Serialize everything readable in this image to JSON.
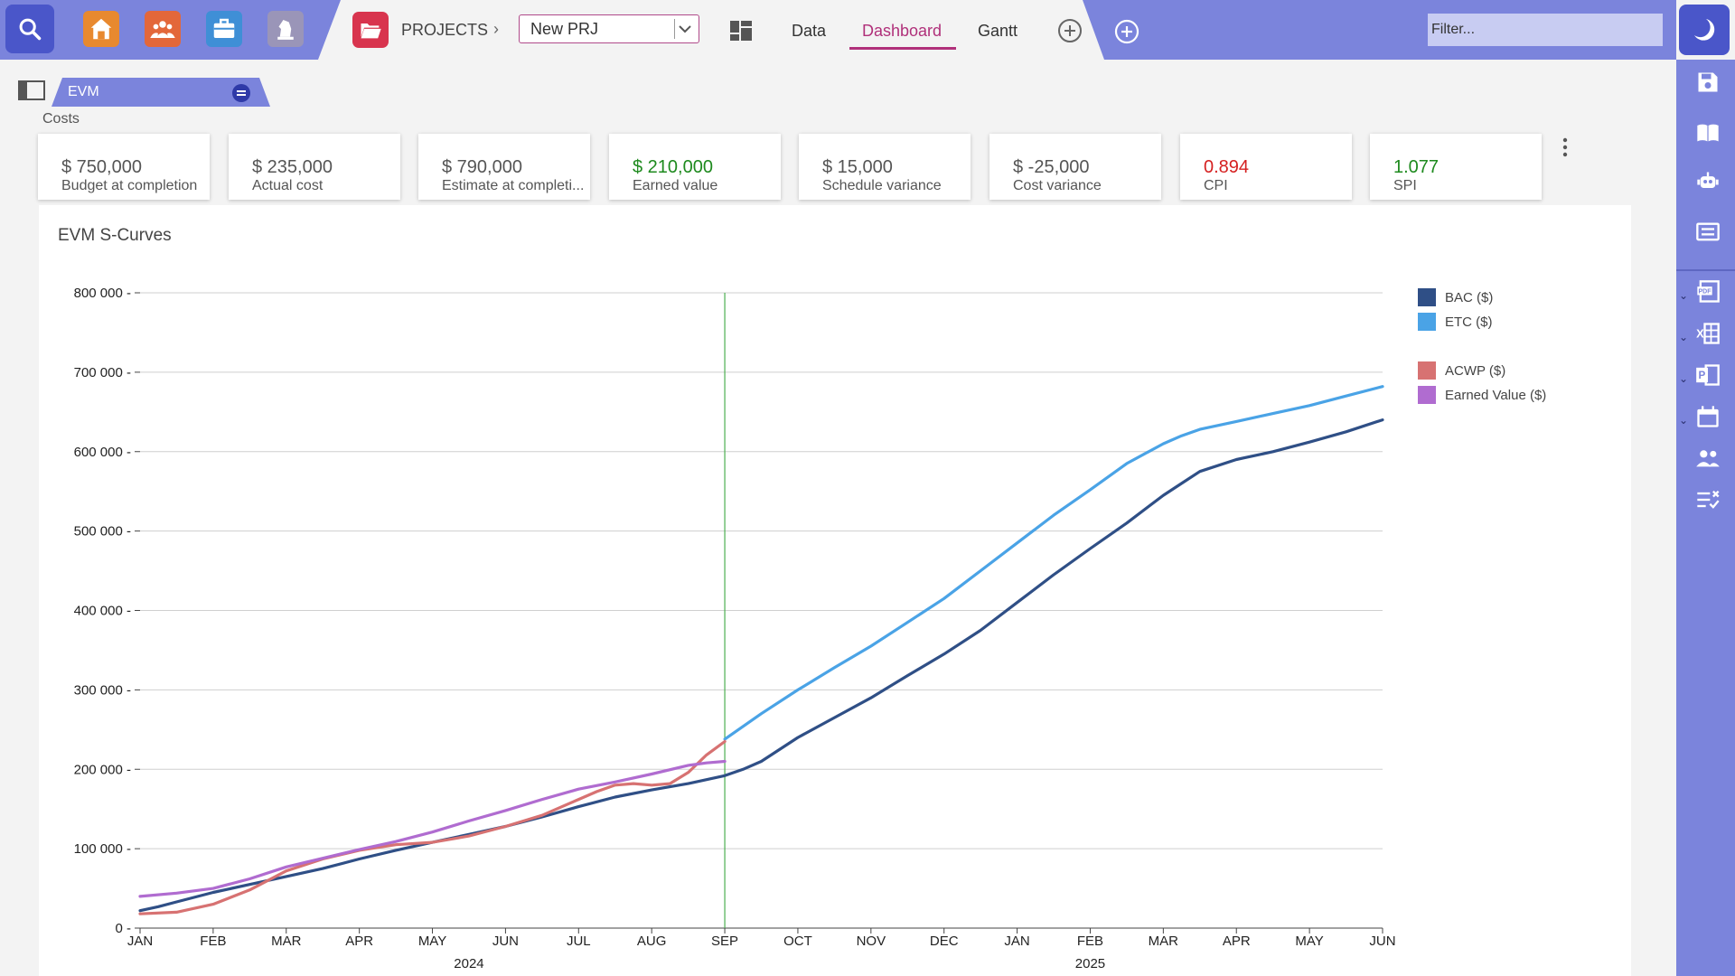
{
  "toolbar": {
    "projects_label": "PROJECTS",
    "project_value": "New PRJ",
    "tabs": [
      {
        "label": "Data",
        "active": false
      },
      {
        "label": "Dashboard",
        "active": true
      },
      {
        "label": "Gantt",
        "active": false
      }
    ],
    "filter_placeholder": "Filter...",
    "accent_color": "#b0307a"
  },
  "section": {
    "tag_label": "EVM",
    "group_label": "Costs"
  },
  "kpis": [
    {
      "value": "$ 750,000",
      "label": "Budget at completion",
      "color": "#555555"
    },
    {
      "value": "$ 235,000",
      "label": "Actual cost",
      "color": "#555555"
    },
    {
      "value": "$ 790,000",
      "label": "Estimate at completi...",
      "color": "#555555"
    },
    {
      "value": "$ 210,000",
      "label": "Earned value",
      "color": "#1e8a1e"
    },
    {
      "value": "$ 15,000",
      "label": "Schedule variance",
      "color": "#555555"
    },
    {
      "value": "$ -25,000",
      "label": "Cost variance",
      "color": "#555555"
    },
    {
      "value": "0.894",
      "label": "CPI",
      "color": "#d52020"
    },
    {
      "value": "1.077",
      "label": "SPI",
      "color": "#1e8a1e"
    }
  ],
  "chart_data": {
    "type": "line",
    "title": "EVM S-Curves",
    "x_ticks": [
      "JAN",
      "FEB",
      "MAR",
      "APR",
      "MAY",
      "JUN",
      "JUL",
      "AUG",
      "SEP",
      "OCT",
      "NOV",
      "DEC",
      "JAN",
      "FEB",
      "MAR",
      "APR",
      "MAY",
      "JUN"
    ],
    "x_groups": [
      {
        "label": "2024",
        "from": 0,
        "to": 9
      },
      {
        "label": "2025",
        "from": 9,
        "to": 17
      }
    ],
    "y_ticks": [
      "0",
      "100 000",
      "200 000",
      "300 000",
      "400 000",
      "500 000",
      "600 000",
      "700 000",
      "800 000"
    ],
    "ylim": [
      0,
      800000
    ],
    "status_date_index": 8,
    "grid": true,
    "legend_position": "right",
    "series": [
      {
        "name": "BAC ($)",
        "color": "#2f4f86",
        "x": [
          0,
          0.25,
          0.5,
          1,
          1.5,
          2,
          2.5,
          3,
          3.5,
          4,
          4.5,
          5,
          5.5,
          6,
          6.5,
          7,
          7.5,
          8,
          8.25,
          8.5,
          9,
          9.5,
          10,
          10.5,
          11,
          11.5,
          12,
          12.5,
          13,
          13.5,
          14,
          14.25,
          14.5,
          15,
          15.5,
          16,
          16.5,
          17
        ],
        "y": [
          22000,
          27000,
          33000,
          45000,
          55000,
          65000,
          75000,
          87000,
          98000,
          108000,
          118000,
          128000,
          140000,
          153000,
          165000,
          174000,
          182000,
          192000,
          200000,
          210000,
          240000,
          265000,
          290000,
          318000,
          345000,
          375000,
          410000,
          445000,
          478000,
          510000,
          545000,
          560000,
          575000,
          590000,
          600000,
          612000,
          625000,
          640000
        ]
      },
      {
        "name": "ETC ($)",
        "color": "#4aa3e6",
        "x": [
          8,
          8.5,
          9,
          9.5,
          10,
          10.5,
          11,
          11.5,
          12,
          12.5,
          13,
          13.5,
          14,
          14.25,
          14.5,
          15,
          15.5,
          16,
          16.5,
          17
        ],
        "y": [
          238000,
          270000,
          300000,
          328000,
          355000,
          385000,
          415000,
          450000,
          485000,
          520000,
          552000,
          585000,
          610000,
          620000,
          628000,
          638000,
          648000,
          658000,
          670000,
          682000
        ]
      },
      {
        "name": "ACWP ($)",
        "color": "#d77272",
        "x": [
          0,
          0.5,
          1,
          1.5,
          2,
          2.5,
          3,
          3.5,
          4,
          4.5,
          5,
          5.5,
          6,
          6.25,
          6.5,
          6.75,
          7,
          7.25,
          7.5,
          7.75,
          8
        ],
        "y": [
          18000,
          20000,
          30000,
          48000,
          72000,
          87000,
          98000,
          105000,
          108000,
          116000,
          128000,
          142000,
          162000,
          172000,
          180000,
          182000,
          180000,
          182000,
          196000,
          218000,
          235000
        ]
      },
      {
        "name": "Earned Value ($)",
        "color": "#b06cd0",
        "x": [
          0,
          0.5,
          1,
          1.5,
          2,
          2.5,
          3,
          3.5,
          4,
          4.5,
          5,
          5.5,
          6,
          6.5,
          7,
          7.5,
          7.75,
          8
        ],
        "y": [
          40000,
          44000,
          50000,
          62000,
          77000,
          88000,
          99000,
          109000,
          121000,
          135000,
          148000,
          162000,
          175000,
          184000,
          194000,
          205000,
          208000,
          210000
        ]
      }
    ]
  }
}
